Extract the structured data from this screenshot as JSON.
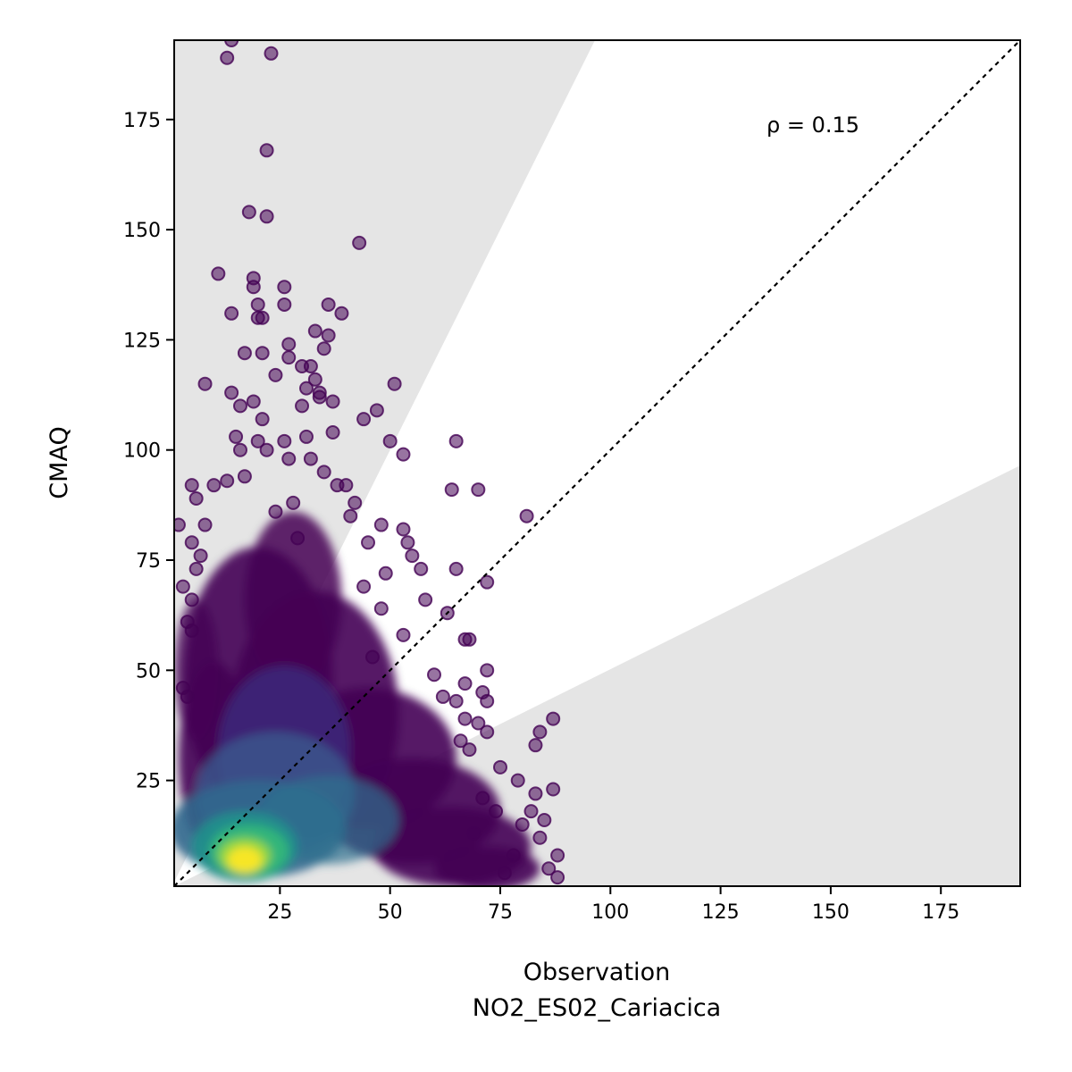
{
  "chart_data": {
    "type": "scatter",
    "xlabel": "Observation",
    "xlabel_sub": "NO2_ES02_Cariacica",
    "ylabel": "CMAQ",
    "xlim": [
      1,
      193
    ],
    "ylim": [
      1,
      193
    ],
    "xticks": [
      25,
      50,
      75,
      100,
      125,
      150,
      175
    ],
    "yticks": [
      25,
      50,
      75,
      100,
      125,
      150,
      175
    ],
    "annotation": "ρ = 0.15",
    "annotation_position": "top-right",
    "reference_line": "1:1",
    "shaded_regions": "outside factor-of-2 band",
    "grid": false,
    "legend": "none",
    "colormap": "viridis (point density)",
    "colors": {
      "low_density": "#440154",
      "mid_density": "#31688e",
      "high_density": "#35b779",
      "peak_density": "#fde725",
      "band_fill": "#e5e5e5"
    },
    "outlier_points": [
      [
        14,
        193
      ],
      [
        13,
        189
      ],
      [
        23,
        190
      ],
      [
        22,
        168
      ],
      [
        18,
        154
      ],
      [
        22,
        153
      ],
      [
        43,
        147
      ],
      [
        11,
        140
      ],
      [
        19,
        139
      ],
      [
        19,
        137
      ],
      [
        26,
        137
      ],
      [
        14,
        131
      ],
      [
        20,
        133
      ],
      [
        26,
        133
      ],
      [
        36,
        133
      ],
      [
        39,
        131
      ],
      [
        20,
        130
      ],
      [
        21,
        130
      ],
      [
        27,
        124
      ],
      [
        17,
        122
      ],
      [
        21,
        122
      ],
      [
        33,
        127
      ],
      [
        35,
        123
      ],
      [
        36,
        126
      ],
      [
        27,
        121
      ],
      [
        30,
        119
      ],
      [
        32,
        119
      ],
      [
        24,
        117
      ],
      [
        33,
        116
      ],
      [
        31,
        114
      ],
      [
        34,
        113
      ],
      [
        8,
        115
      ],
      [
        51,
        115
      ],
      [
        14,
        113
      ],
      [
        19,
        111
      ],
      [
        16,
        110
      ],
      [
        21,
        107
      ],
      [
        30,
        110
      ],
      [
        34,
        112
      ],
      [
        37,
        111
      ],
      [
        44,
        107
      ],
      [
        47,
        109
      ],
      [
        15,
        103
      ],
      [
        20,
        102
      ],
      [
        26,
        102
      ],
      [
        16,
        100
      ],
      [
        22,
        100
      ],
      [
        27,
        98
      ],
      [
        32,
        98
      ],
      [
        31,
        103
      ],
      [
        37,
        104
      ],
      [
        50,
        102
      ],
      [
        53,
        99
      ],
      [
        65,
        102
      ],
      [
        64,
        91
      ],
      [
        70,
        91
      ],
      [
        81,
        85
      ],
      [
        13,
        93
      ],
      [
        17,
        94
      ],
      [
        10,
        92
      ],
      [
        5,
        92
      ],
      [
        6,
        89
      ],
      [
        2,
        83
      ],
      [
        8,
        83
      ],
      [
        5,
        79
      ],
      [
        7,
        76
      ],
      [
        3,
        69
      ],
      [
        5,
        66
      ],
      [
        6,
        73
      ],
      [
        5,
        59
      ],
      [
        4,
        61
      ],
      [
        3,
        46
      ],
      [
        4,
        44
      ],
      [
        45,
        79
      ],
      [
        48,
        83
      ],
      [
        53,
        82
      ],
      [
        54,
        79
      ],
      [
        57,
        73
      ],
      [
        65,
        73
      ],
      [
        72,
        70
      ],
      [
        63,
        63
      ],
      [
        67,
        57
      ],
      [
        68,
        57
      ],
      [
        72,
        50
      ],
      [
        67,
        47
      ],
      [
        71,
        45
      ],
      [
        72,
        43
      ],
      [
        65,
        43
      ],
      [
        67,
        39
      ],
      [
        70,
        38
      ],
      [
        72,
        36
      ],
      [
        66,
        34
      ],
      [
        68,
        32
      ],
      [
        84,
        36
      ],
      [
        87,
        39
      ],
      [
        83,
        33
      ],
      [
        75,
        28
      ],
      [
        79,
        25
      ],
      [
        83,
        22
      ],
      [
        87,
        23
      ],
      [
        82,
        18
      ],
      [
        85,
        16
      ],
      [
        80,
        15
      ],
      [
        84,
        12
      ],
      [
        88,
        8
      ],
      [
        86,
        5
      ],
      [
        88,
        3
      ],
      [
        78,
        8
      ],
      [
        76,
        4
      ],
      [
        74,
        18
      ],
      [
        71,
        21
      ],
      [
        69,
        13
      ],
      [
        62,
        44
      ],
      [
        60,
        49
      ],
      [
        58,
        66
      ],
      [
        55,
        76
      ],
      [
        49,
        72
      ],
      [
        53,
        58
      ],
      [
        48,
        64
      ],
      [
        46,
        53
      ],
      [
        44,
        69
      ],
      [
        41,
        85
      ],
      [
        42,
        88
      ],
      [
        38,
        92
      ],
      [
        40,
        92
      ],
      [
        35,
        95
      ],
      [
        28,
        88
      ],
      [
        24,
        86
      ],
      [
        29,
        80
      ]
    ]
  }
}
